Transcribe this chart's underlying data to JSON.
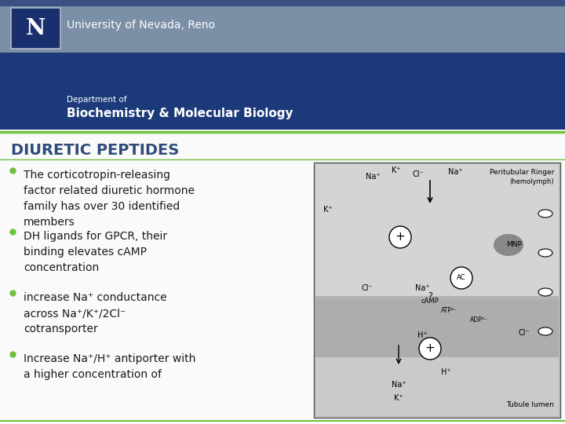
{
  "title": "DIURETIC PEPTIDES",
  "title_color": "#2E4B7A",
  "title_fontsize": 14,
  "header_top_color": "#7B8FA6",
  "header_mid_color": "#1C3A7A",
  "header_dark_color": "#152D6A",
  "unr_text": "University of Nevada, Reno",
  "dept_line1": "Department of",
  "dept_line2": "Biochemistry & Molecular Biology",
  "slide_bg": "#FAFAFA",
  "green_line": "#72C040",
  "bullet_dot_color": "#72C040",
  "text_color": "#1A1A1A",
  "bullet_fontsize": 10,
  "bullets": [
    "The corticotropin-releasing\nfactor related diuretic hormone\nfamily has over 30 identified\nmembers",
    "DH ligands for GPCR, their\nbinding elevates cAMP\nconcentration",
    "increase Na⁺ conductance\nacross Na⁺/K⁺/2Cl⁻\ncotransporter",
    "Increase Na⁺/H⁺ antiporter with\na higher concentration of"
  ],
  "diagram_bg": "#BEBEBE",
  "logo_blue": "#1A2F6E",
  "logo_n_color": "#FFFFFF"
}
